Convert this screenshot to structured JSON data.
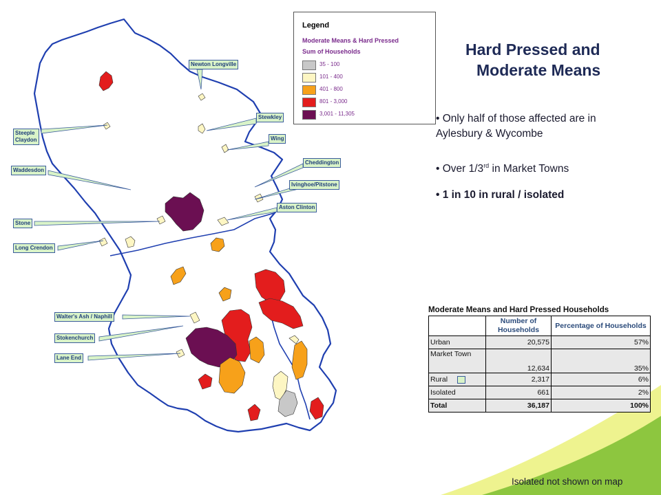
{
  "title": {
    "line1": "Hard Pressed and",
    "line2": "Moderate Means"
  },
  "bullets": [
    {
      "text_a": "• Only half of those affected are in",
      "text_b": "Aylesbury & Wycombe"
    },
    {
      "text_pre": "• Over 1/3",
      "sup": "rd",
      "text_post": " in Market Towns"
    },
    {
      "text": "• 1 in 10 in rural / isolated"
    }
  ],
  "legend": {
    "title": "Legend",
    "subtitle": "Moderate Means & Hard Pressed",
    "field": "Sum of Households",
    "classes": [
      {
        "label": "35 - 100",
        "color": "#c8c8c8"
      },
      {
        "label": "101 - 400",
        "color": "#fdf6c3"
      },
      {
        "label": "401 - 800",
        "color": "#f7a11a"
      },
      {
        "label": "801 - 3,000",
        "color": "#e31d1d"
      },
      {
        "label": "3,001 - 11,305",
        "color": "#6b0f52"
      }
    ]
  },
  "places": [
    "Newton Longville",
    "Stewkley",
    "Steeple",
    "Claydon",
    "Wing",
    "Waddesdon",
    "Cheddington",
    "Ivinghoe/Pitstone",
    "Aston Clinton",
    "Stone",
    "Long Crendon",
    "Walter's Ash / Naphill",
    "Stokenchurch",
    "Lane End"
  ],
  "table": {
    "title": "Moderate Means and Hard Pressed Households",
    "headers": [
      "",
      "Number of Households",
      "Percentage of Households"
    ],
    "rows": [
      {
        "label": "Urban",
        "households": "20,575",
        "pct": "57%"
      },
      {
        "label": "Market Town",
        "households": "12,634",
        "pct": "35%"
      },
      {
        "label": "Rural",
        "households": "2,317",
        "pct": "6%"
      },
      {
        "label": "Isolated",
        "households": "661",
        "pct": "2%"
      },
      {
        "label": "Total",
        "households": "36,187",
        "pct": "100%"
      }
    ]
  },
  "footnote": "Isolated not shown on map",
  "colors": {
    "boundary": "#1f3fb0",
    "callout_fill": "#d9f3c8",
    "accent_green": "#8dc63f",
    "accent_yellow": "#e8ef7a",
    "title": "#1e2a56"
  }
}
